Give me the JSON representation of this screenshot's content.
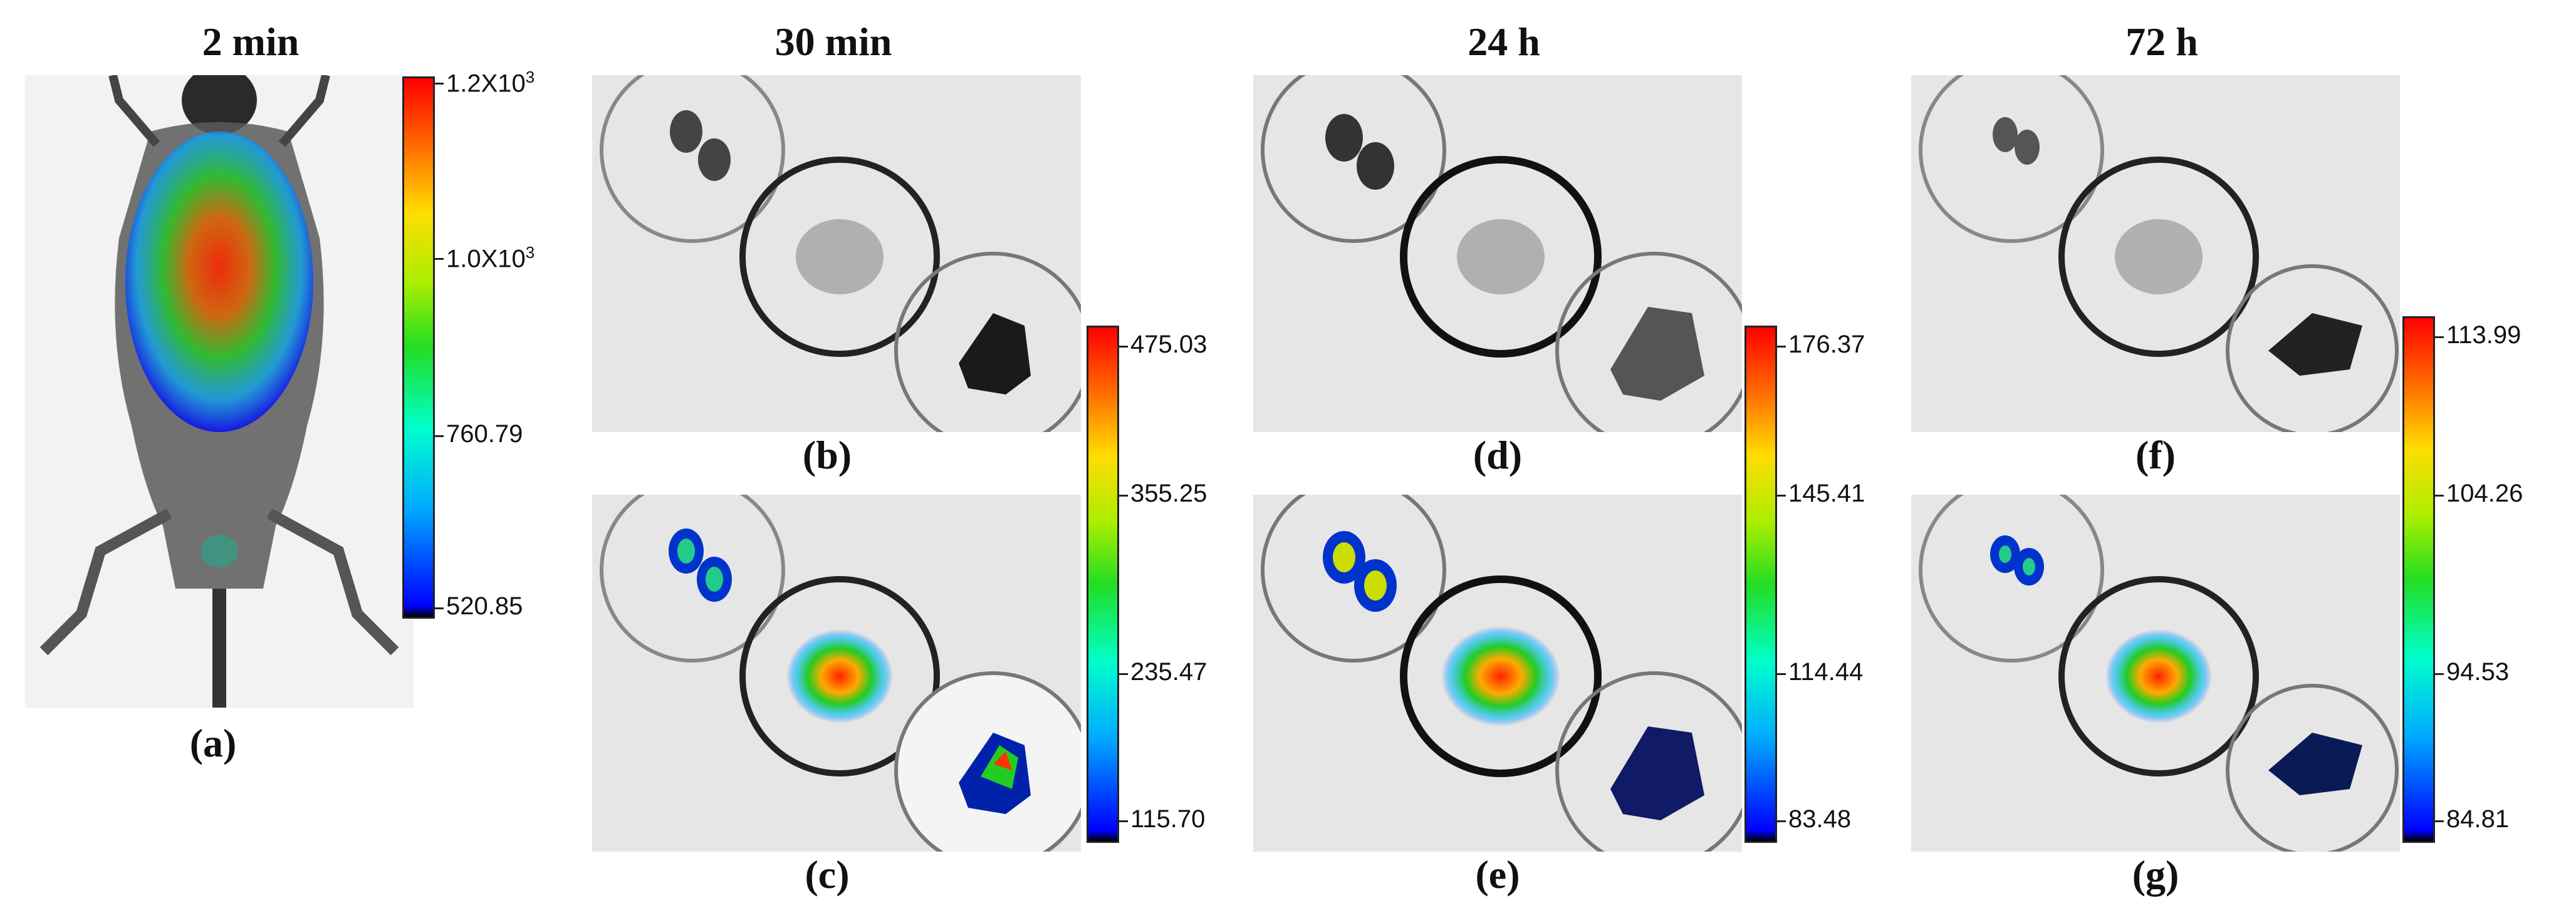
{
  "titles": {
    "t1": "2 min",
    "t2": "30 min",
    "t3": "24 h",
    "t4": "72 h"
  },
  "captions": {
    "a": "(a)",
    "b": "(b)",
    "c": "(c)",
    "d": "(d)",
    "e": "(e)",
    "f": "(f)",
    "g": "(g)"
  },
  "colorbars": {
    "bar1": {
      "top": "1.2X10",
      "top_exp": "3",
      "mid1": "1.0X10",
      "mid1_exp": "3",
      "mid2": "760.79",
      "bottom": "520.85"
    },
    "bar2": {
      "t0": "475.03",
      "t1": "355.25",
      "t2": "235.47",
      "t3": "115.70"
    },
    "bar3": {
      "t0": "176.37",
      "t1": "145.41",
      "t2": "114.44",
      "t3": "83.48"
    },
    "bar4": {
      "t0": "113.99",
      "t1": "104.26",
      "t2": "94.53",
      "t3": "84.81"
    }
  },
  "colors": {
    "scale_low": "#0000ff",
    "scale_mid": "#22dd22",
    "scale_high": "#ff0000",
    "background": "#e6e6e6"
  }
}
